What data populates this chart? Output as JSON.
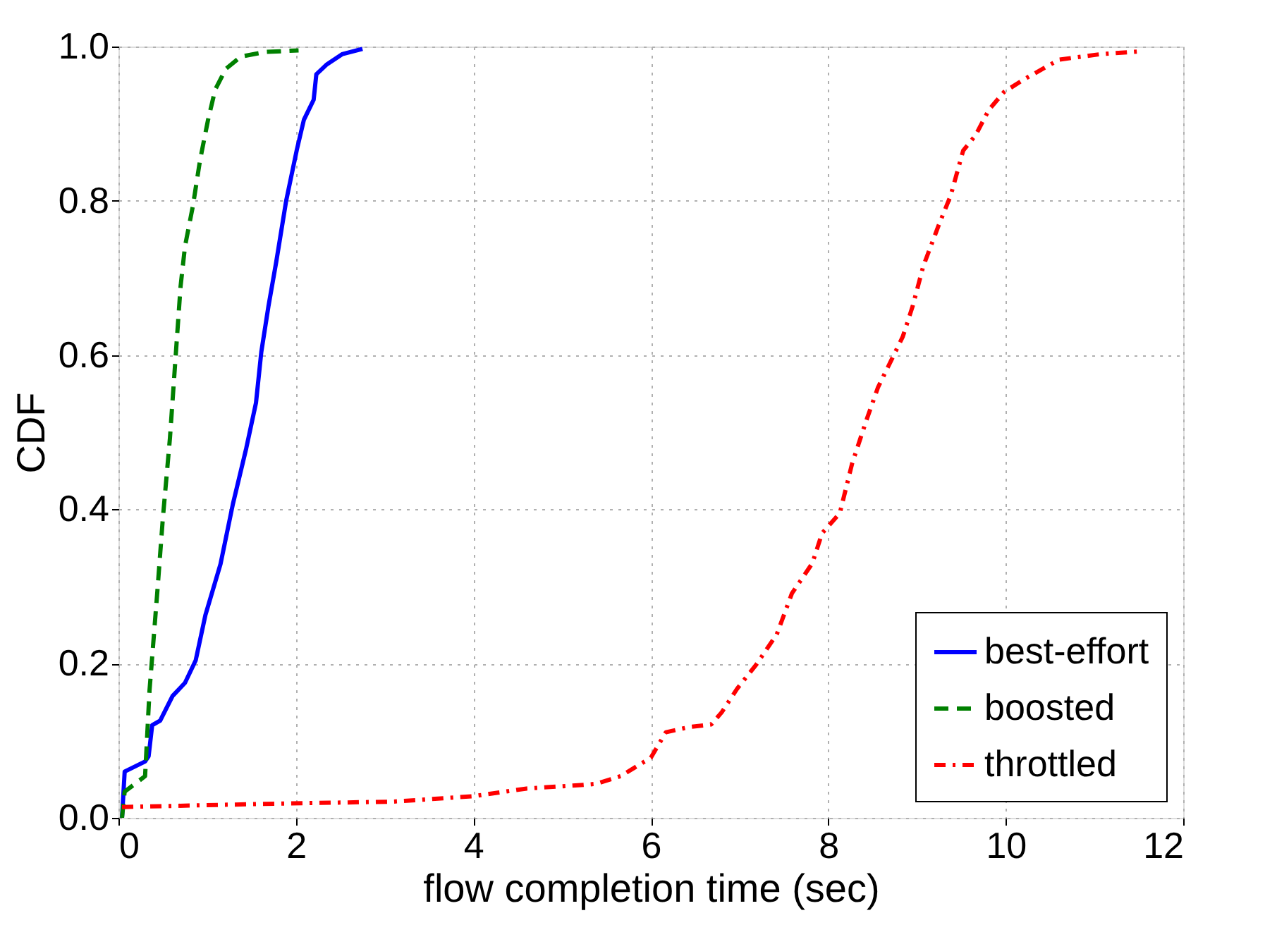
{
  "chart_data": {
    "type": "line",
    "xlabel": "flow completion time (sec)",
    "ylabel": "CDF",
    "xlim": [
      0,
      12
    ],
    "xticks": [
      0,
      2,
      4,
      6,
      8,
      10,
      12
    ],
    "ylim": [
      0,
      1
    ],
    "yticks": [
      {
        "value": 0,
        "label": "0.0"
      },
      0.2,
      0.4,
      0.6,
      0.8,
      {
        "value": 1,
        "label": "1.0"
      }
    ],
    "grid": true,
    "legend": "bottom right",
    "series": [
      {
        "name": "best-effort",
        "color": "#0000ff",
        "line_style": "solid",
        "x": [
          0.04,
          0.07,
          0.3,
          0.34,
          0.38,
          0.47,
          0.61,
          0.75,
          0.87,
          0.98,
          1.15,
          1.29,
          1.44,
          1.55,
          1.61,
          1.69,
          1.78,
          1.89,
          2.01,
          2.09,
          2.2,
          2.23,
          2.35,
          2.52,
          2.75
        ],
        "values": [
          0,
          0.06,
          0.073,
          0.08,
          0.12,
          0.126,
          0.158,
          0.175,
          0.204,
          0.263,
          0.329,
          0.407,
          0.479,
          0.538,
          0.604,
          0.663,
          0.722,
          0.8,
          0.866,
          0.905,
          0.931,
          0.964,
          0.977,
          0.99,
          0.997
        ]
      },
      {
        "name": "boosted",
        "color": "#008000",
        "line_style": "dashed",
        "x": [
          0.04,
          0.07,
          0.3,
          0.35,
          0.44,
          0.5,
          0.58,
          0.64,
          0.7,
          0.75,
          0.84,
          0.92,
          1.01,
          1.09,
          1.21,
          1.38,
          1.66,
          2.03
        ],
        "values": [
          0,
          0.034,
          0.054,
          0.165,
          0.296,
          0.388,
          0.492,
          0.591,
          0.689,
          0.741,
          0.794,
          0.853,
          0.905,
          0.944,
          0.971,
          0.987,
          0.993,
          0.995
        ]
      },
      {
        "name": "throttled",
        "color": "#ff0000",
        "line_style": "dotted",
        "x": [
          0.04,
          1.61,
          3.09,
          4.0,
          4.6,
          5.15,
          5.38,
          5.66,
          6.0,
          6.17,
          6.45,
          6.68,
          6.8,
          6.97,
          7.19,
          7.42,
          7.59,
          7.82,
          7.93,
          8.13,
          8.27,
          8.44,
          8.56,
          8.73,
          8.84,
          8.95,
          9.07,
          9.24,
          9.38,
          9.52,
          9.66,
          9.81,
          9.98,
          10.2,
          10.6,
          11.06,
          11.54
        ],
        "values": [
          0.014,
          0.018,
          0.021,
          0.028,
          0.038,
          0.042,
          0.044,
          0.054,
          0.078,
          0.111,
          0.118,
          0.121,
          0.137,
          0.167,
          0.199,
          0.238,
          0.291,
          0.33,
          0.369,
          0.395,
          0.46,
          0.519,
          0.558,
          0.598,
          0.624,
          0.663,
          0.715,
          0.767,
          0.807,
          0.865,
          0.885,
          0.918,
          0.941,
          0.957,
          0.983,
          0.99,
          0.994
        ]
      }
    ]
  }
}
